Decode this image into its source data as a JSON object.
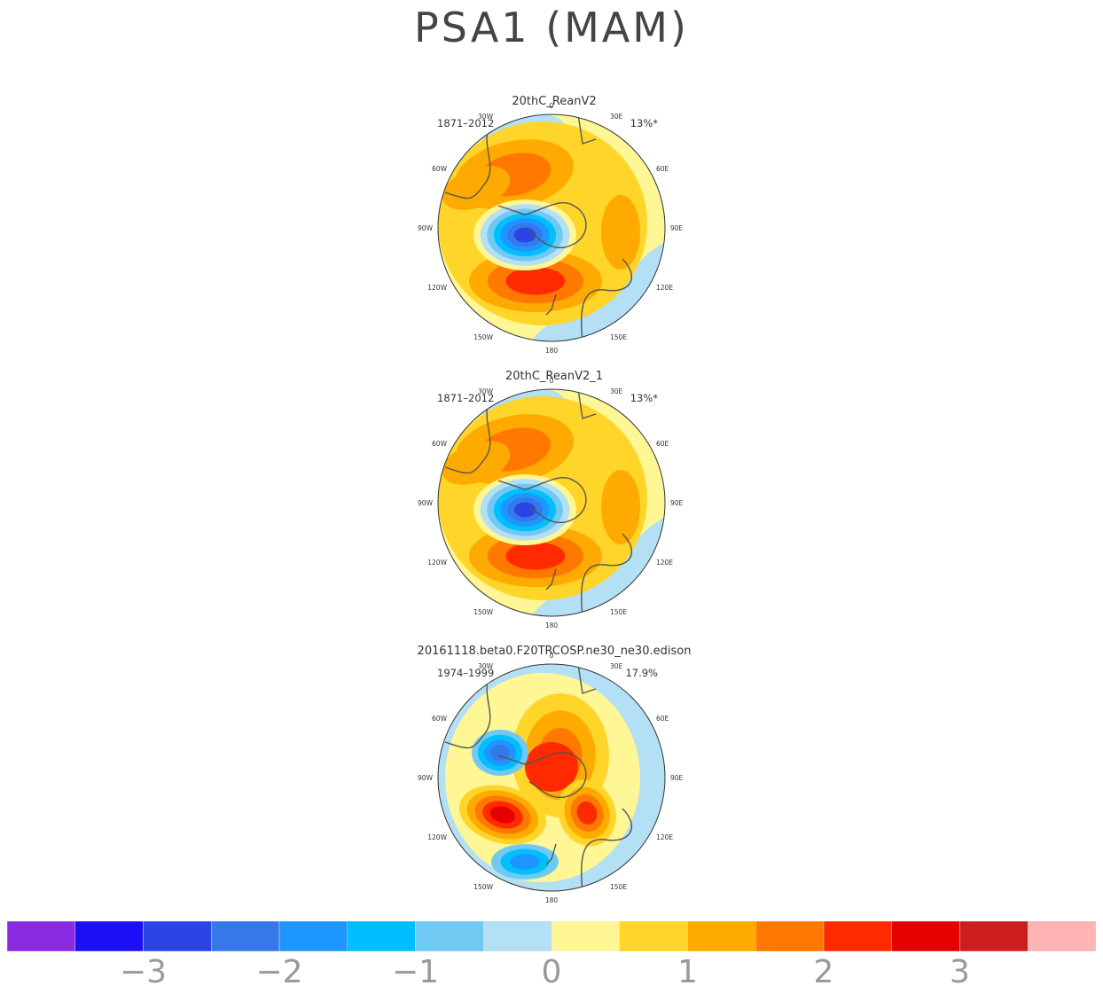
{
  "title": "PSA1 (MAM)",
  "panels": [
    {
      "name": "20thC_ReanV2",
      "period": "1871–2012",
      "pct": "13%*",
      "pattern": "obs"
    },
    {
      "name": "20thC_ReanV2_1",
      "period": "1871–2012",
      "pct": "13%*",
      "pattern": "obs"
    },
    {
      "name": "20161118.beta0.F20TRCOSP.ne30_ne30.edison",
      "period": "1974–1999",
      "pct": "17.9%",
      "pattern": "model"
    }
  ],
  "lon_labels": {
    "top": "0",
    "bottom": "180",
    "left": "90W",
    "right": "90E",
    "n30w": "30W",
    "n30e": "30E",
    "n60w": "60W",
    "n60e": "60E",
    "n120w": "120W",
    "n120e": "120E",
    "n150w": "150W",
    "n150e": "150E"
  },
  "colorbar": {
    "colors": [
      "#8a2be2",
      "#1a0ff5",
      "#2a44e6",
      "#3578ea",
      "#1e96ff",
      "#00bfff",
      "#6fc9f2",
      "#b3e0f5",
      "#fff696",
      "#ffd52a",
      "#ffaa00",
      "#ff7800",
      "#ff2a00",
      "#e60000",
      "#cc1e1e",
      "#ffb4b4"
    ],
    "labels": [
      "−3",
      "−2",
      "−1",
      "0",
      "1",
      "2",
      "3"
    ]
  }
}
